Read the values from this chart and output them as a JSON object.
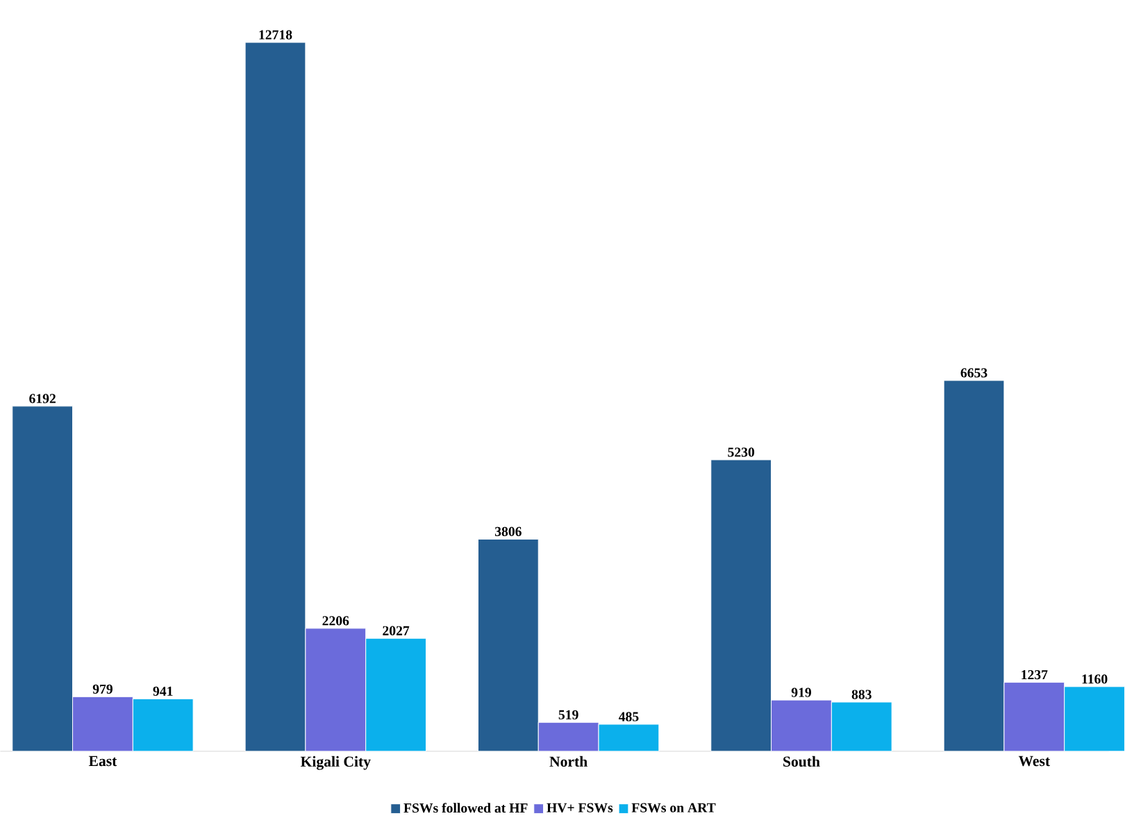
{
  "chart_data": {
    "type": "bar",
    "categories": [
      "East",
      "Kigali City",
      "North",
      "South",
      "West"
    ],
    "series": [
      {
        "name": "FSWs followed at HF",
        "color": "#255e91",
        "values": [
          6192,
          12718,
          3806,
          5230,
          6653
        ]
      },
      {
        "name": "HV+ FSWs",
        "color": "#6b6bdb",
        "values": [
          979,
          2206,
          519,
          919,
          1237
        ]
      },
      {
        "name": "FSWs on ART",
        "color": "#0bb0ec",
        "values": [
          941,
          2027,
          485,
          883,
          1160
        ]
      }
    ],
    "data_labels": true,
    "legend": "bottom"
  }
}
